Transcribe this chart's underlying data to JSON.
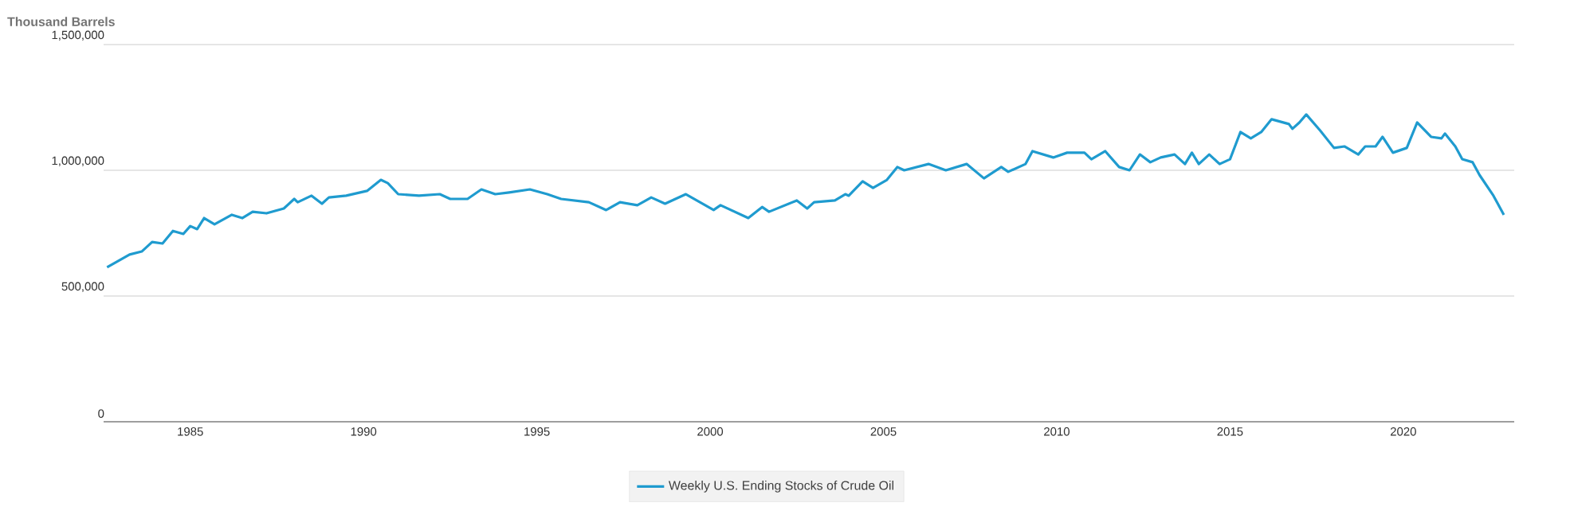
{
  "chart_data": {
    "type": "line",
    "ylabel": "Thousand Barrels",
    "x": [
      1982.6,
      1983.25,
      1983.6,
      1983.9,
      1984.2,
      1984.5,
      1984.8,
      1985.0,
      1985.2,
      1985.4,
      1985.7,
      1986.2,
      1986.5,
      1986.8,
      1987.2,
      1987.7,
      1988.0,
      1988.1,
      1988.5,
      1988.8,
      1989.0,
      1989.5,
      1990.1,
      1990.5,
      1990.7,
      1991.0,
      1991.6,
      1992.2,
      1992.5,
      1993.0,
      1993.4,
      1993.8,
      1994.2,
      1994.8,
      1995.3,
      1995.7,
      1996.5,
      1997.0,
      1997.4,
      1997.9,
      1998.3,
      1998.7,
      1999.3,
      2000.1,
      2000.3,
      2001.1,
      2001.5,
      2001.7,
      2002.5,
      2002.8,
      2003.0,
      2003.6,
      2003.9,
      2004.0,
      2004.4,
      2004.7,
      2005.1,
      2005.4,
      2005.6,
      2006.3,
      2006.8,
      2007.4,
      2007.9,
      2008.4,
      2008.6,
      2009.1,
      2009.3,
      2009.9,
      2010.3,
      2010.8,
      2011.0,
      2011.4,
      2011.8,
      2012.1,
      2012.4,
      2012.7,
      2013.0,
      2013.4,
      2013.7,
      2013.9,
      2014.1,
      2014.4,
      2014.7,
      2015.0,
      2015.3,
      2015.6,
      2015.9,
      2016.2,
      2016.7,
      2016.8,
      2017.0,
      2017.2,
      2017.6,
      2018.0,
      2018.3,
      2018.7,
      2018.9,
      2019.2,
      2019.4,
      2019.7,
      2020.1,
      2020.4,
      2020.8,
      2021.1,
      2021.2,
      2021.5,
      2021.7,
      2022.0,
      2022.2,
      2022.6,
      2022.9
    ],
    "series": [
      {
        "name": "Weekly U.S. Ending Stocks of Crude Oil",
        "color": "#1f9bcf",
        "values": [
          614000,
          665000,
          677000,
          715000,
          709000,
          759000,
          747000,
          778000,
          766000,
          810000,
          785000,
          823000,
          810000,
          835000,
          829000,
          848000,
          886000,
          873000,
          899000,
          867000,
          892000,
          899000,
          918000,
          962000,
          949000,
          905000,
          899000,
          905000,
          886000,
          886000,
          924000,
          905000,
          912000,
          924000,
          905000,
          886000,
          873000,
          842000,
          873000,
          861000,
          892000,
          867000,
          905000,
          842000,
          861000,
          810000,
          854000,
          835000,
          880000,
          848000,
          873000,
          880000,
          905000,
          899000,
          956000,
          930000,
          962000,
          1013000,
          1000000,
          1025000,
          1000000,
          1025000,
          968000,
          1013000,
          994000,
          1025000,
          1076000,
          1051000,
          1070000,
          1070000,
          1044000,
          1076000,
          1013000,
          1000000,
          1063000,
          1032000,
          1051000,
          1063000,
          1025000,
          1070000,
          1025000,
          1063000,
          1025000,
          1044000,
          1152000,
          1127000,
          1152000,
          1203000,
          1184000,
          1165000,
          1190000,
          1222000,
          1158000,
          1089000,
          1095000,
          1063000,
          1095000,
          1095000,
          1133000,
          1070000,
          1089000,
          1190000,
          1133000,
          1127000,
          1146000,
          1095000,
          1044000,
          1032000,
          981000,
          899000,
          823000
        ]
      }
    ],
    "xlim": [
      1982.5,
      2023.2
    ],
    "xticks": [
      1985,
      1990,
      1995,
      2000,
      2005,
      2010,
      2015,
      2020
    ],
    "ylim": [
      0,
      1500000
    ],
    "yticks": [
      0,
      {
        "value": 500000,
        "label": "500,000"
      },
      {
        "value": 1000000,
        "label": "1,000,000"
      },
      {
        "value": 1500000,
        "label": "1,500,000"
      }
    ],
    "grid": "y",
    "legend": "bottom",
    "marker": "none",
    "line_style": "solid"
  }
}
